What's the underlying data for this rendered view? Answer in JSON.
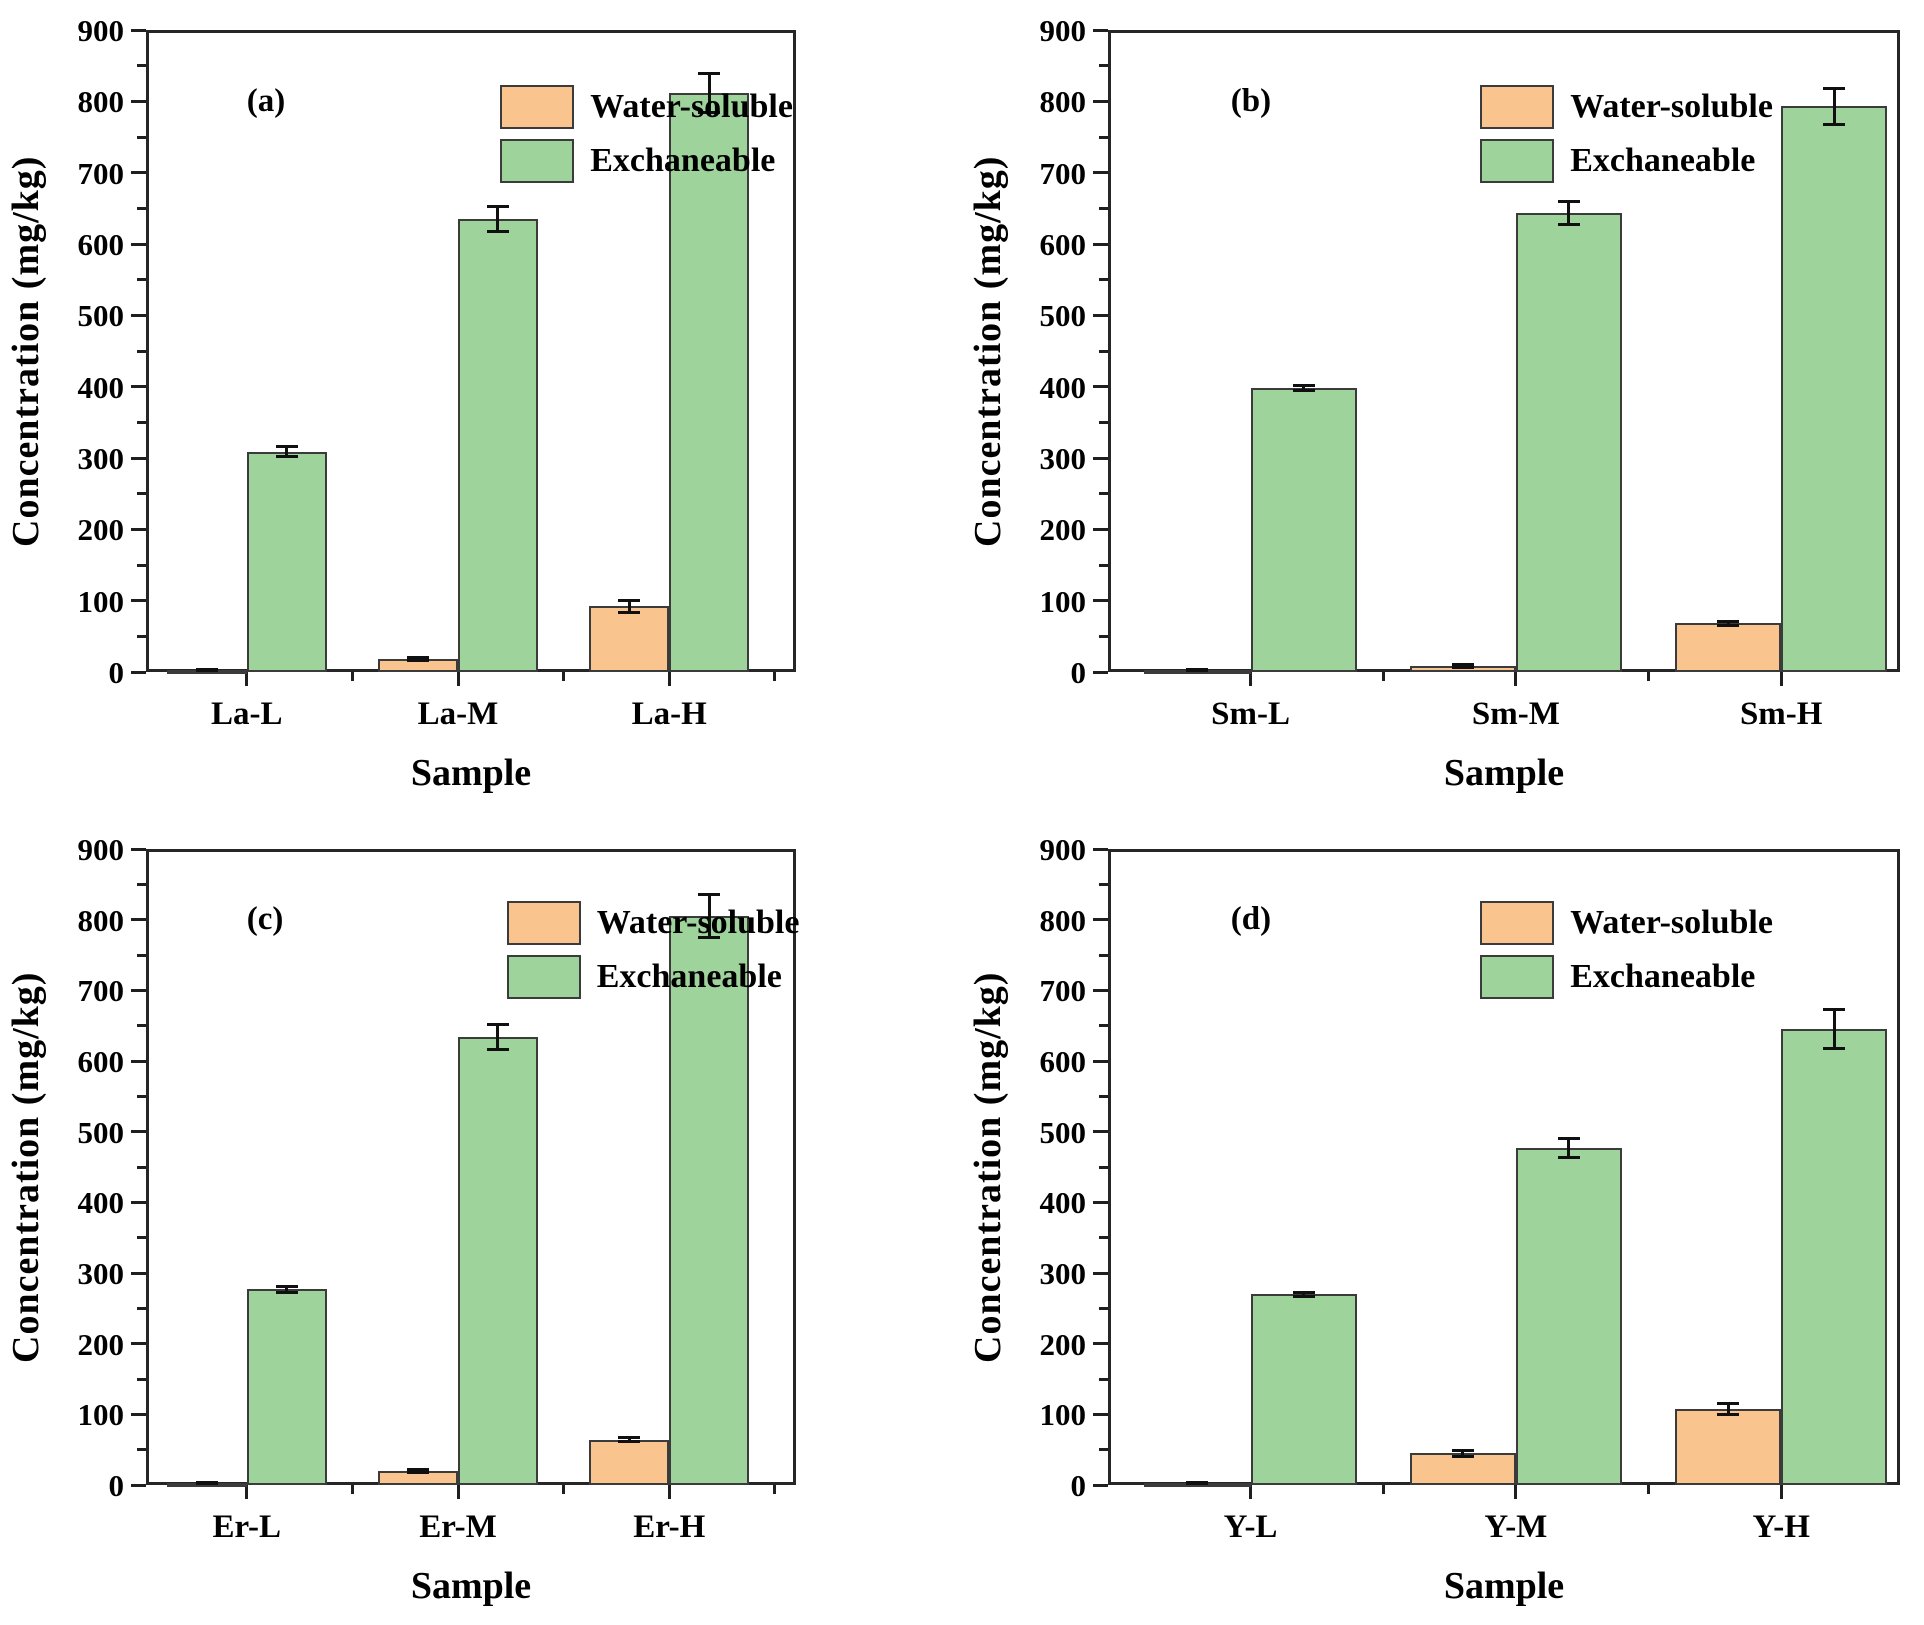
{
  "figure": {
    "background": "#ffffff"
  },
  "colors": {
    "water_soluble": "#F9C48E",
    "exchangeable": "#9FD39C",
    "bar_border": "#3B3B3B",
    "axis": "#1F1F1F",
    "text": "#000000"
  },
  "legend": {
    "items": [
      {
        "label": "Water-soluble",
        "color_key": "water_soluble"
      },
      {
        "label": "Exchaneable",
        "color_key": "exchangeable"
      }
    ]
  },
  "chart_data": [
    {
      "type": "bar",
      "letter": "(a)",
      "categories": [
        "La-L",
        "La-M",
        "La-H"
      ],
      "series": [
        {
          "name": "Water-soluble",
          "values": [
            2,
            18,
            92
          ],
          "errors": [
            1,
            2,
            8
          ]
        },
        {
          "name": "Exchaneable",
          "values": [
            309,
            635,
            812
          ],
          "errors": [
            7,
            17,
            27
          ]
        }
      ],
      "xlabel": "Sample",
      "ylabel": "Concentration (mg/kg)",
      "ylim": [
        0,
        900
      ],
      "ytick_step": 100,
      "yminor_step": 50,
      "legend_position": "upper-center-right",
      "grid": false
    },
    {
      "type": "bar",
      "letter": "(b)",
      "categories": [
        "Sm-L",
        "Sm-M",
        "Sm-H"
      ],
      "series": [
        {
          "name": "Water-soluble",
          "values": [
            2,
            8,
            68
          ],
          "errors": [
            1,
            2,
            3
          ]
        },
        {
          "name": "Exchaneable",
          "values": [
            398,
            643,
            793
          ],
          "errors": [
            4,
            16,
            25
          ]
        }
      ],
      "xlabel": "Sample",
      "ylabel": "Concentration (mg/kg)",
      "ylim": [
        0,
        900
      ],
      "ytick_step": 100,
      "yminor_step": 50,
      "legend_position": "upper-center-right",
      "grid": false
    },
    {
      "type": "bar",
      "letter": "(c)",
      "categories": [
        "Er-L",
        "Er-M",
        "Er-H"
      ],
      "series": [
        {
          "name": "Water-soluble",
          "values": [
            2,
            20,
            64
          ],
          "errors": [
            1,
            2,
            3
          ]
        },
        {
          "name": "Exchaneable",
          "values": [
            277,
            634,
            805
          ],
          "errors": [
            4,
            18,
            30
          ]
        }
      ],
      "xlabel": "Sample",
      "ylabel": "Concentration (mg/kg)",
      "ylim": [
        0,
        900
      ],
      "ytick_step": 100,
      "yminor_step": 50,
      "legend_position": "upper-center-right",
      "grid": false
    },
    {
      "type": "bar",
      "letter": "(d)",
      "categories": [
        "Y-L",
        "Y-M",
        "Y-H"
      ],
      "series": [
        {
          "name": "Water-soluble",
          "values": [
            3,
            45,
            108
          ],
          "errors": [
            1,
            4,
            8
          ]
        },
        {
          "name": "Exchaneable",
          "values": [
            270,
            477,
            645
          ],
          "errors": [
            3,
            14,
            28
          ]
        }
      ],
      "xlabel": "Sample",
      "ylabel": "Concentration (mg/kg)",
      "ylim": [
        0,
        900
      ],
      "ytick_step": 100,
      "yminor_step": 50,
      "legend_position": "upper-center-right",
      "grid": false
    }
  ]
}
